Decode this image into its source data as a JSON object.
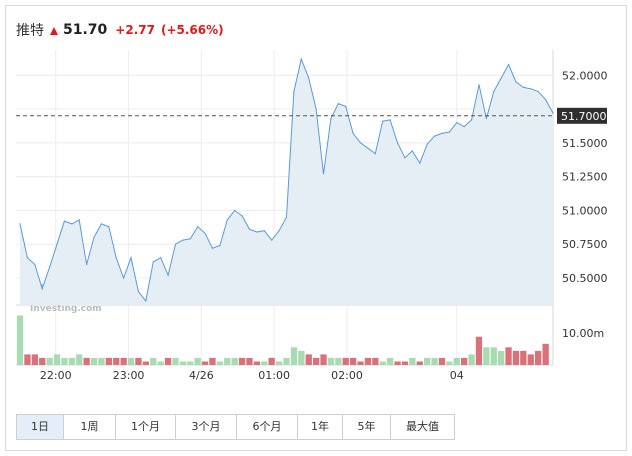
{
  "quote": {
    "name": "推特",
    "price": "51.70",
    "change": "+2.77",
    "change_pct": "(+5.66%)",
    "up_color": "#e0191b",
    "arrow_icon": "up-triangle-icon"
  },
  "watermark": {
    "cn": "英为财情",
    "en": "Investing.com"
  },
  "ranges": [
    {
      "label": "1日",
      "active": true
    },
    {
      "label": "1周",
      "active": false
    },
    {
      "label": "1个月",
      "active": false
    },
    {
      "label": "3个月",
      "active": false
    },
    {
      "label": "6个月",
      "active": false
    },
    {
      "label": "1年",
      "active": false
    },
    {
      "label": "5年",
      "active": false
    },
    {
      "label": "最大值",
      "active": false
    }
  ],
  "chart_data": {
    "type": "area",
    "title": "",
    "xlabel": "",
    "ylabel": "",
    "ylim": [
      50.3,
      52.15
    ],
    "y_ticks": [
      50.5,
      50.75,
      51.0,
      51.25,
      51.5,
      51.75,
      52.0
    ],
    "y_tick_labels": [
      "50.5000",
      "50.7500",
      "51.0000",
      "51.2500",
      "51.5000",
      "51.7500",
      "52.0000"
    ],
    "x_tick_labels": [
      "22:00",
      "23:00",
      "4/26",
      "01:00",
      "02:00",
      "04"
    ],
    "x_tick_index": [
      4.83,
      14.67,
      24.5,
      34.33,
      44.17,
      59
    ],
    "current_price": 51.7,
    "current_price_label": "51.7000",
    "line_color": "#5b9bd5",
    "fill_color": "#e6eef5",
    "series": [
      {
        "values": [
          50.9,
          50.65,
          50.6,
          50.42,
          50.58,
          50.75,
          50.92,
          50.9,
          50.93,
          50.6,
          50.8,
          50.9,
          50.88,
          50.65,
          50.5,
          50.65,
          50.4,
          50.33,
          50.62,
          50.65,
          50.52,
          50.75,
          50.78,
          50.79,
          50.88,
          50.83,
          50.72,
          50.74,
          50.93,
          51.0,
          50.96,
          50.86,
          50.84,
          50.85,
          50.78,
          50.85,
          50.95,
          51.88,
          52.12,
          51.98,
          51.75,
          51.27,
          51.68,
          51.79,
          51.77,
          51.57,
          51.5,
          51.46,
          51.42,
          51.66,
          51.67,
          51.5,
          51.39,
          51.44,
          51.35,
          51.49,
          51.55,
          51.57,
          51.58,
          51.65,
          51.62,
          51.67,
          51.93,
          51.68,
          51.88,
          51.98,
          52.08,
          51.95,
          51.91,
          51.9,
          51.88,
          51.82,
          51.72
        ]
      }
    ],
    "volume": {
      "label": "10.00m",
      "max": 15,
      "up_color": "#a8dbb3",
      "down_color": "#d9707a",
      "bars": [
        {
          "v": 14,
          "up": true
        },
        {
          "v": 3,
          "up": false
        },
        {
          "v": 3,
          "up": false
        },
        {
          "v": 2,
          "up": false
        },
        {
          "v": 2,
          "up": true
        },
        {
          "v": 3,
          "up": true
        },
        {
          "v": 2,
          "up": true
        },
        {
          "v": 2,
          "up": true
        },
        {
          "v": 3,
          "up": true
        },
        {
          "v": 2,
          "up": false
        },
        {
          "v": 2,
          "up": true
        },
        {
          "v": 2,
          "up": true
        },
        {
          "v": 2,
          "up": false
        },
        {
          "v": 2,
          "up": false
        },
        {
          "v": 2,
          "up": false
        },
        {
          "v": 2,
          "up": true
        },
        {
          "v": 2,
          "up": false
        },
        {
          "v": 1,
          "up": false
        },
        {
          "v": 2,
          "up": true
        },
        {
          "v": 1,
          "up": true
        },
        {
          "v": 2,
          "up": false
        },
        {
          "v": 2,
          "up": true
        },
        {
          "v": 1,
          "up": true
        },
        {
          "v": 1,
          "up": true
        },
        {
          "v": 2,
          "up": true
        },
        {
          "v": 1,
          "up": false
        },
        {
          "v": 2,
          "up": false
        },
        {
          "v": 1,
          "up": true
        },
        {
          "v": 2,
          "up": true
        },
        {
          "v": 2,
          "up": true
        },
        {
          "v": 2,
          "up": false
        },
        {
          "v": 2,
          "up": false
        },
        {
          "v": 1,
          "up": false
        },
        {
          "v": 1,
          "up": true
        },
        {
          "v": 2,
          "up": false
        },
        {
          "v": 1,
          "up": true
        },
        {
          "v": 2,
          "up": true
        },
        {
          "v": 5,
          "up": true
        },
        {
          "v": 4,
          "up": true
        },
        {
          "v": 3,
          "up": false
        },
        {
          "v": 2,
          "up": false
        },
        {
          "v": 3,
          "up": false
        },
        {
          "v": 2,
          "up": true
        },
        {
          "v": 2,
          "up": true
        },
        {
          "v": 2,
          "up": false
        },
        {
          "v": 2,
          "up": false
        },
        {
          "v": 1,
          "up": false
        },
        {
          "v": 2,
          "up": false
        },
        {
          "v": 2,
          "up": false
        },
        {
          "v": 1,
          "up": true
        },
        {
          "v": 2,
          "up": true
        },
        {
          "v": 1,
          "up": false
        },
        {
          "v": 1,
          "up": false
        },
        {
          "v": 2,
          "up": true
        },
        {
          "v": 1,
          "up": false
        },
        {
          "v": 2,
          "up": true
        },
        {
          "v": 2,
          "up": true
        },
        {
          "v": 2,
          "up": false
        },
        {
          "v": 1,
          "up": true
        },
        {
          "v": 2,
          "up": true
        },
        {
          "v": 2,
          "up": false
        },
        {
          "v": 3,
          "up": true
        },
        {
          "v": 8,
          "up": false
        },
        {
          "v": 5,
          "up": true
        },
        {
          "v": 5,
          "up": true
        },
        {
          "v": 4,
          "up": true
        },
        {
          "v": 5,
          "up": false
        },
        {
          "v": 4,
          "up": false
        },
        {
          "v": 4,
          "up": false
        },
        {
          "v": 3,
          "up": false
        },
        {
          "v": 4,
          "up": false
        },
        {
          "v": 6,
          "up": false
        }
      ]
    }
  }
}
